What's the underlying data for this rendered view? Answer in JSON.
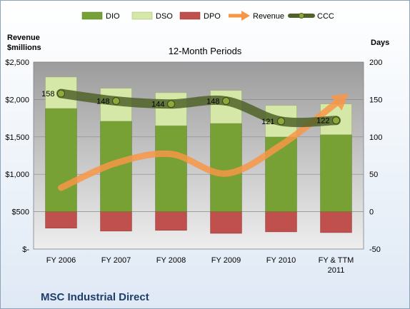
{
  "company_name": "MSC Industrial Direct",
  "colors": {
    "dio": "#77a035",
    "dso": "#d6e8a8",
    "dpo": "#c0504d",
    "revenue": "#f79646",
    "ccc": "#4f6228",
    "plot_bg": "#bdbdbd"
  },
  "chart_data": {
    "type": "bar",
    "subtitle": "12-Month Periods",
    "categories": [
      "FY 2006",
      "FY 2007",
      "FY 2008",
      "FY 2009",
      "FY 2010",
      "FY & TTM 2011"
    ],
    "left_axis": {
      "title_line1": "Revenue",
      "title_line2": "$millions",
      "range": [
        0,
        2500
      ],
      "ticks": [
        0,
        500,
        1000,
        1500,
        2000,
        2500
      ],
      "tick_labels": [
        "$-",
        "$500",
        "$1,000",
        "$1,500",
        "$2,000",
        "$2,500"
      ]
    },
    "right_axis": {
      "title": "Days",
      "range": [
        -50,
        200
      ],
      "ticks": [
        -50,
        0,
        50,
        100,
        150,
        200
      ],
      "tick_labels": [
        "-50",
        "0",
        "50",
        "100",
        "150",
        "200"
      ]
    },
    "series": [
      {
        "name": "DIO",
        "kind": "stacked-bar",
        "axis": "right",
        "values": [
          138,
          121,
          115,
          118,
          100,
          103
        ]
      },
      {
        "name": "DSO",
        "kind": "stacked-bar",
        "axis": "right",
        "values": [
          42,
          44,
          44,
          44,
          42,
          41
        ]
      },
      {
        "name": "DPO",
        "kind": "negative-bar",
        "axis": "right",
        "values": [
          -22,
          -26,
          -25,
          -29,
          -27,
          -28
        ]
      },
      {
        "name": "Revenue",
        "kind": "arrow-line",
        "axis": "left",
        "values": [
          820,
          1150,
          1270,
          1010,
          1390,
          1950
        ]
      },
      {
        "name": "CCC",
        "kind": "line",
        "axis": "right",
        "values": [
          158,
          148,
          144,
          148,
          121,
          122
        ],
        "labels": [
          "158",
          "148",
          "144",
          "148",
          "121",
          "122"
        ]
      }
    ],
    "legend": {
      "position": "top"
    },
    "grid": true
  }
}
